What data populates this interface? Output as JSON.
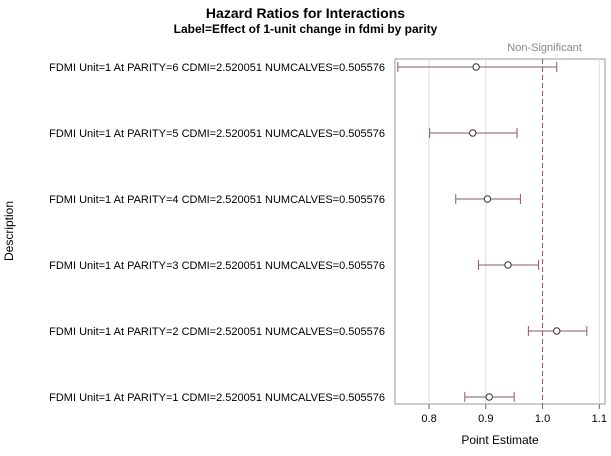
{
  "chart_data": {
    "type": "scatter",
    "title": "Hazard Ratios for Interactions",
    "subtitle": "Label=Effect of 1-unit change in fdmi by parity",
    "xlabel": "Point Estimate",
    "ylabel": "Description",
    "xlim": [
      0.74,
      1.11
    ],
    "xticks": [
      0.8,
      0.9,
      1.0,
      1.1
    ],
    "xtick_labels": [
      "0.8",
      "0.9",
      "1.0",
      "1.1"
    ],
    "reference_line": {
      "x": 1.0,
      "label": "Non-Significant"
    },
    "grid": "vertical",
    "colors": {
      "interval": "#8b5a65",
      "reference": "#8b5a65",
      "marker": "#333333",
      "grid": "#dddddd"
    },
    "categories": [
      "FDMI Unit=1 At PARITY=6 CDMI=2.520051 NUMCALVES=0.505576",
      "FDMI Unit=1 At PARITY=5 CDMI=2.520051 NUMCALVES=0.505576",
      "FDMI Unit=1 At PARITY=4 CDMI=2.520051 NUMCALVES=0.505576",
      "FDMI Unit=1 At PARITY=3 CDMI=2.520051 NUMCALVES=0.505576",
      "FDMI Unit=1 At PARITY=2 CDMI=2.520051 NUMCALVES=0.505576",
      "FDMI Unit=1 At PARITY=1 CDMI=2.520051 NUMCALVES=0.505576"
    ],
    "estimates": [
      0.883,
      0.877,
      0.903,
      0.939,
      1.025,
      0.906
    ],
    "lower": [
      0.745,
      0.801,
      0.847,
      0.887,
      0.975,
      0.863
    ],
    "upper": [
      1.025,
      0.955,
      0.961,
      0.993,
      1.078,
      0.95
    ]
  }
}
